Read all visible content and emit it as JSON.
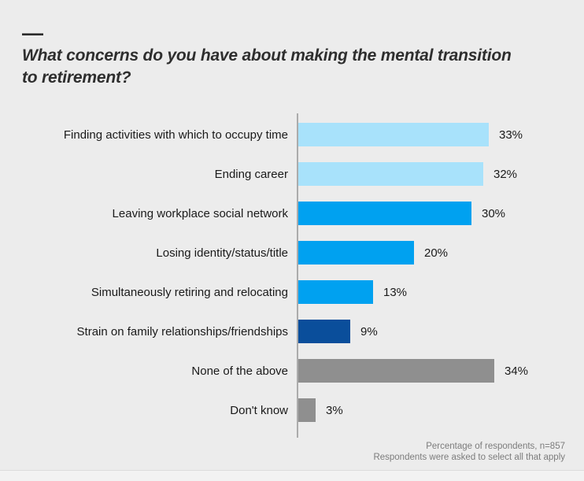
{
  "window": {
    "background": "#ececec"
  },
  "header": {
    "dash": "—",
    "title_line1": "What concerns do you have about making the mental transition",
    "title_line2": "to retirement?",
    "title_color": "#2e2e2e"
  },
  "chart_data": {
    "type": "bar",
    "orientation": "horizontal",
    "title": "What concerns do you have about making the mental transition to retirement?",
    "categories": [
      "Finding activities with which to occupy time",
      "Ending career",
      "Leaving workplace social network",
      "Losing identity/status/title",
      "Simultaneously retiring and relocating",
      "Strain on family relationships/friendships",
      "None of the above",
      "Don't know"
    ],
    "values": [
      33,
      32,
      30,
      20,
      13,
      9,
      34,
      3
    ],
    "value_labels": [
      "33%",
      "32%",
      "30%",
      "20%",
      "13%",
      "9%",
      "34%",
      "3%"
    ],
    "bar_colors": [
      "#a8e2fb",
      "#a8e2fb",
      "#00a1f0",
      "#00a1f0",
      "#00a1f0",
      "#0a4e9b",
      "#8f8f8f",
      "#8f8f8f"
    ],
    "colors": {
      "light_blue": "#a8e2fb",
      "azure_blue": "#00a1f0",
      "dark_navy": "#0a4e9b",
      "gray": "#8f8f8f",
      "axis": "#ababab"
    },
    "xlabel": "",
    "ylabel": "",
    "xlim": [
      0,
      45
    ],
    "grid": false,
    "legend": false,
    "notes": [
      "Percentage of respondents, n=857",
      "Respondents were asked to select all that apply"
    ]
  }
}
